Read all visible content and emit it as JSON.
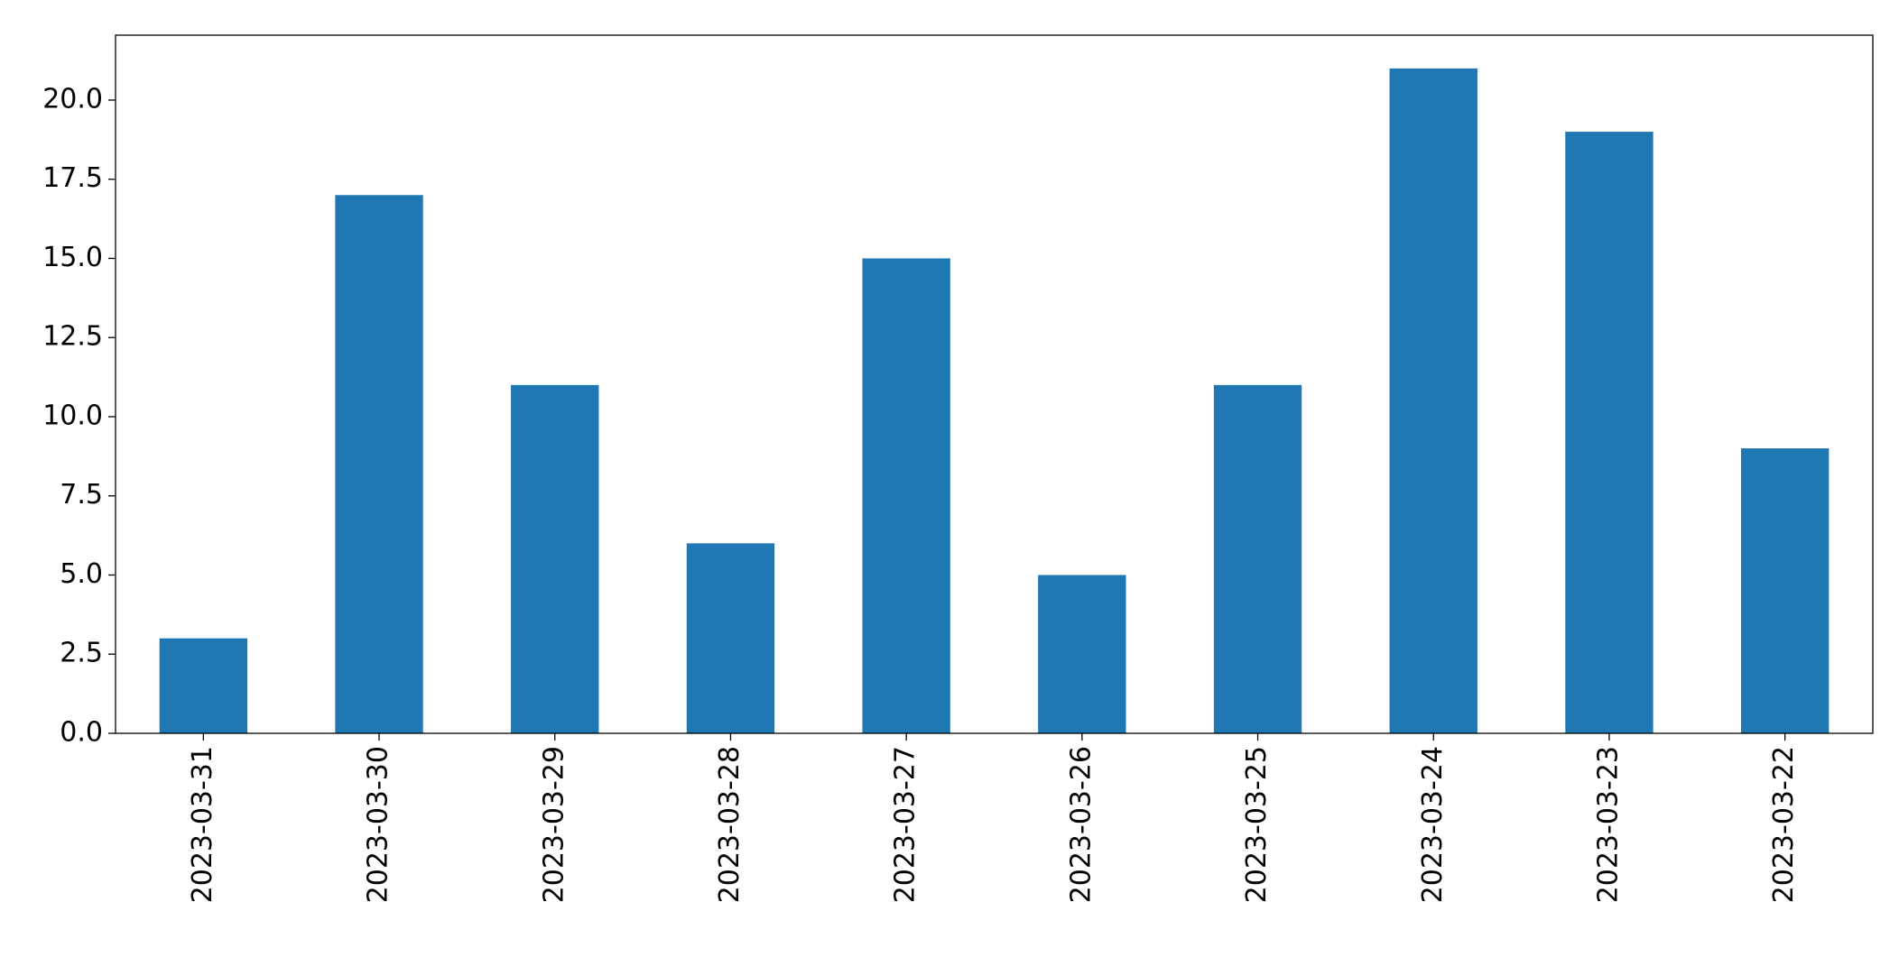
{
  "chart_data": {
    "type": "bar",
    "categories": [
      "2023-03-31",
      "2023-03-30",
      "2023-03-29",
      "2023-03-28",
      "2023-03-27",
      "2023-03-26",
      "2023-03-25",
      "2023-03-24",
      "2023-03-23",
      "2023-03-22"
    ],
    "values": [
      3,
      17,
      11,
      6,
      15,
      5,
      11,
      21,
      19,
      9
    ],
    "color": "#1f77b4",
    "ylim": [
      0,
      22.05
    ],
    "yticks": [
      {
        "value": 0,
        "label": "0.0"
      },
      2.5,
      {
        "value": 5,
        "label": "5.0"
      },
      7.5,
      {
        "value": 10,
        "label": "10.0"
      },
      12.5,
      {
        "value": 15,
        "label": "15.0"
      },
      17.5,
      {
        "value": 20,
        "label": "20.0"
      }
    ],
    "grid": false
  }
}
